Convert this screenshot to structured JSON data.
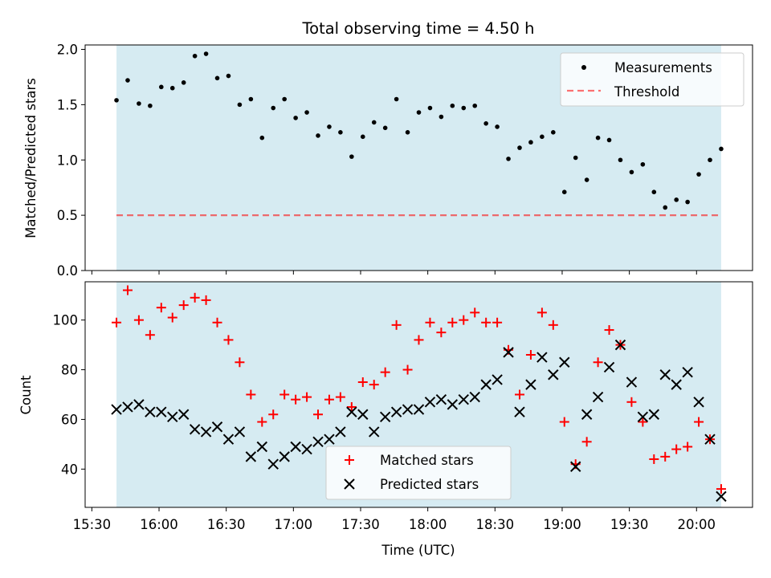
{
  "title": "Total observing time = 4.50 h",
  "colors": {
    "observing_window": "#add8e6",
    "measurement": "#000000",
    "threshold": "#ff0000",
    "matched": "#ff0000",
    "predicted": "#000000"
  },
  "chart_data": [
    {
      "type": "scatter",
      "panel": "top",
      "title": "Total observing time = 4.50 h",
      "ylabel": "Matched/Predicted stars",
      "xlabel": "",
      "xlim": [
        "15:27",
        "20:25"
      ],
      "ylim": [
        0,
        2.04
      ],
      "yticks": [
        "0.0",
        "0.5",
        "1.0",
        "1.5",
        "2.0"
      ],
      "shaded_span": [
        "15:41",
        "20:11"
      ],
      "legend_position": "top-right",
      "legend": [
        "Measurements",
        "Threshold"
      ],
      "threshold": 0.5,
      "series": [
        {
          "name": "Measurements",
          "x": [
            "15:41",
            "15:46",
            "15:51",
            "15:56",
            "16:01",
            "16:06",
            "16:11",
            "16:16",
            "16:21",
            "16:26",
            "16:31",
            "16:36",
            "16:41",
            "16:46",
            "16:51",
            "16:56",
            "17:01",
            "17:06",
            "17:11",
            "17:16",
            "17:21",
            "17:26",
            "17:31",
            "17:36",
            "17:41",
            "17:46",
            "17:51",
            "17:56",
            "18:01",
            "18:06",
            "18:11",
            "18:16",
            "18:21",
            "18:26",
            "18:31",
            "18:36",
            "18:41",
            "18:46",
            "18:51",
            "18:56",
            "19:01",
            "19:06",
            "19:11",
            "19:16",
            "19:21",
            "19:26",
            "19:31",
            "19:36",
            "19:41",
            "19:46",
            "19:51",
            "19:56",
            "20:01",
            "20:06",
            "20:11"
          ],
          "values": [
            1.54,
            1.72,
            1.51,
            1.49,
            1.66,
            1.65,
            1.7,
            1.94,
            1.96,
            1.74,
            1.76,
            1.5,
            1.55,
            1.2,
            1.47,
            1.55,
            1.38,
            1.43,
            1.22,
            1.3,
            1.25,
            1.03,
            1.21,
            1.34,
            1.29,
            1.55,
            1.25,
            1.43,
            1.47,
            1.39,
            1.49,
            1.47,
            1.49,
            1.33,
            1.3,
            1.01,
            1.11,
            1.16,
            1.21,
            1.25,
            0.71,
            1.02,
            0.82,
            1.2,
            1.18,
            1.0,
            0.89,
            0.96,
            0.71,
            0.57,
            0.64,
            0.62,
            0.87,
            1.0,
            1.1
          ]
        }
      ]
    },
    {
      "type": "scatter",
      "panel": "bottom",
      "xlabel": "Time (UTC)",
      "ylabel": "Count",
      "xlim": [
        "15:27",
        "20:25"
      ],
      "ylim": [
        24.6,
        115.4
      ],
      "xticks": [
        "15:30",
        "16:00",
        "16:30",
        "17:00",
        "17:30",
        "18:00",
        "18:30",
        "19:00",
        "19:30",
        "20:00"
      ],
      "yticks": [
        "40",
        "60",
        "80",
        "100"
      ],
      "shaded_span": [
        "15:41",
        "20:11"
      ],
      "legend_position": "lower center",
      "legend": [
        "Matched stars",
        "Predicted stars"
      ],
      "x": [
        "15:41",
        "15:46",
        "15:51",
        "15:56",
        "16:01",
        "16:06",
        "16:11",
        "16:16",
        "16:21",
        "16:26",
        "16:31",
        "16:36",
        "16:41",
        "16:46",
        "16:51",
        "16:56",
        "17:01",
        "17:06",
        "17:11",
        "17:16",
        "17:21",
        "17:26",
        "17:31",
        "17:36",
        "17:41",
        "17:46",
        "17:51",
        "17:56",
        "18:01",
        "18:06",
        "18:11",
        "18:16",
        "18:21",
        "18:26",
        "18:31",
        "18:36",
        "18:41",
        "18:46",
        "18:51",
        "18:56",
        "19:01",
        "19:06",
        "19:11",
        "19:16",
        "19:21",
        "19:26",
        "19:31",
        "19:36",
        "19:41",
        "19:46",
        "19:51",
        "19:56",
        "20:01",
        "20:06",
        "20:11"
      ],
      "series": [
        {
          "name": "Matched stars",
          "values": [
            99,
            112,
            100,
            94,
            105,
            101,
            106,
            109,
            108,
            99,
            92,
            83,
            70,
            59,
            62,
            70,
            68,
            69,
            62,
            68,
            69,
            65,
            75,
            74,
            79,
            98,
            80,
            92,
            99,
            95,
            99,
            100,
            103,
            99,
            99,
            88,
            70,
            86,
            103,
            98,
            59,
            42,
            51,
            83,
            96,
            90,
            67,
            59,
            44,
            45,
            48,
            49,
            59,
            52,
            32
          ]
        },
        {
          "name": "Predicted stars",
          "values": [
            64,
            65,
            66,
            63,
            63,
            61,
            62,
            56,
            55,
            57,
            52,
            55,
            45,
            49,
            42,
            45,
            49,
            48,
            51,
            52,
            55,
            63,
            62,
            55,
            61,
            63,
            64,
            64,
            67,
            68,
            66,
            68,
            69,
            74,
            76,
            87,
            63,
            74,
            85,
            78,
            83,
            41,
            62,
            69,
            81,
            90,
            75,
            61,
            62,
            78,
            74,
            79,
            67,
            52,
            29
          ]
        }
      ]
    }
  ]
}
